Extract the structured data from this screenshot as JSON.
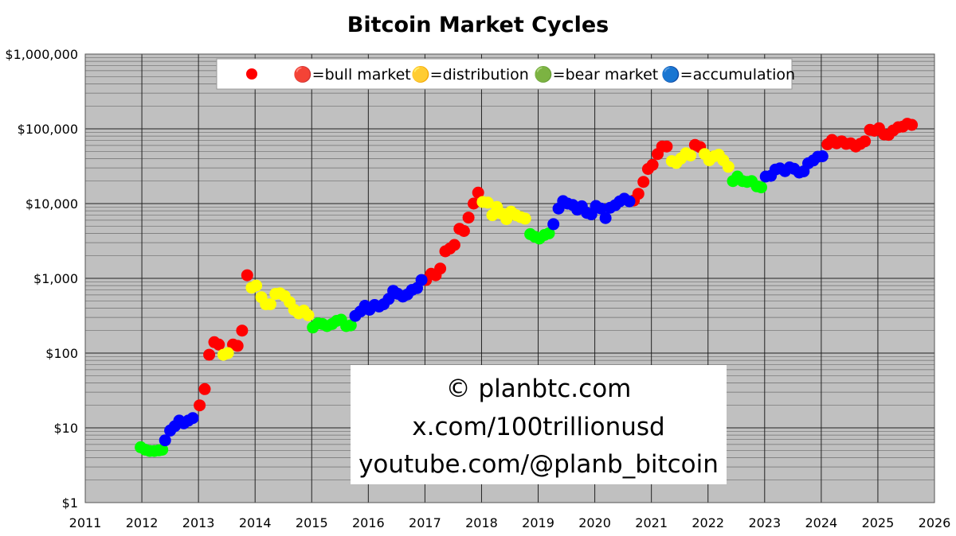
{
  "chart_data": {
    "type": "scatter",
    "title": "Bitcoin Market Cycles",
    "xlabel": "",
    "ylabel": "",
    "x_scale": "linear",
    "y_scale": "log",
    "xlim": [
      2011,
      2026
    ],
    "ylim": [
      1,
      1000000
    ],
    "x_ticks": [
      "2011",
      "2012",
      "2013",
      "2014",
      "2015",
      "2016",
      "2017",
      "2018",
      "2019",
      "2020",
      "2021",
      "2022",
      "2023",
      "2024",
      "2025",
      "2026"
    ],
    "y_ticks": [
      {
        "value": 1,
        "label": "$1"
      },
      {
        "value": 10,
        "label": "$10"
      },
      {
        "value": 100,
        "label": "$100"
      },
      {
        "value": 1000,
        "label": "$1,000"
      },
      {
        "value": 10000,
        "label": "$10,000"
      },
      {
        "value": 100000,
        "label": "$100,000"
      },
      {
        "value": 1000000,
        "label": "$1,000,000"
      }
    ],
    "grid": true,
    "plot_background": "#c0c0c0",
    "legend": {
      "placement": "top",
      "marker_color": "#ff0000",
      "entries": [
        {
          "label": "🔴=bull market",
          "color": "#ff0000"
        },
        {
          "label": "🟡=distribution",
          "color": "#ffff00"
        },
        {
          "label": "🟢=bear market",
          "color": "#00ff00"
        },
        {
          "label": "🔵=accumulation",
          "color": "#0000ff"
        }
      ]
    },
    "series": [
      {
        "phase": "bull market",
        "color": "#ff0000",
        "points": [
          [
            2013.02,
            20
          ],
          [
            2013.11,
            33
          ],
          [
            2013.19,
            95
          ],
          [
            2013.28,
            140
          ],
          [
            2013.36,
            130
          ],
          [
            2013.61,
            130
          ],
          [
            2013.69,
            125
          ],
          [
            2013.77,
            200
          ],
          [
            2013.86,
            1100
          ],
          [
            2017.02,
            950
          ],
          [
            2017.11,
            1150
          ],
          [
            2017.19,
            1100
          ],
          [
            2017.27,
            1350
          ],
          [
            2017.36,
            2300
          ],
          [
            2017.44,
            2500
          ],
          [
            2017.52,
            2800
          ],
          [
            2017.61,
            4600
          ],
          [
            2017.69,
            4300
          ],
          [
            2017.77,
            6500
          ],
          [
            2017.86,
            10000
          ],
          [
            2017.94,
            14000
          ],
          [
            2020.69,
            11000
          ],
          [
            2020.77,
            13500
          ],
          [
            2020.86,
            19500
          ],
          [
            2020.94,
            29000
          ],
          [
            2021.02,
            33000
          ],
          [
            2021.11,
            46000
          ],
          [
            2021.19,
            58000
          ],
          [
            2021.27,
            58000
          ],
          [
            2021.77,
            61000
          ],
          [
            2021.86,
            57000
          ],
          [
            2024.11,
            62000
          ],
          [
            2024.19,
            71000
          ],
          [
            2024.27,
            64000
          ],
          [
            2024.36,
            68000
          ],
          [
            2024.44,
            63000
          ],
          [
            2024.52,
            64000
          ],
          [
            2024.61,
            58000
          ],
          [
            2024.69,
            63000
          ],
          [
            2024.77,
            68000
          ],
          [
            2024.86,
            97000
          ],
          [
            2024.94,
            94000
          ],
          [
            2025.02,
            102000
          ],
          [
            2025.11,
            84000
          ],
          [
            2025.19,
            83000
          ],
          [
            2025.27,
            95000
          ],
          [
            2025.36,
            105000
          ],
          [
            2025.44,
            107000
          ],
          [
            2025.52,
            117000
          ],
          [
            2025.6,
            113000
          ]
        ]
      },
      {
        "phase": "distribution",
        "color": "#ffff00",
        "points": [
          [
            2013.44,
            95
          ],
          [
            2013.52,
            100
          ],
          [
            2013.94,
            750
          ],
          [
            2014.02,
            800
          ],
          [
            2014.11,
            560
          ],
          [
            2014.19,
            450
          ],
          [
            2014.27,
            450
          ],
          [
            2014.36,
            620
          ],
          [
            2014.44,
            630
          ],
          [
            2014.52,
            580
          ],
          [
            2014.61,
            480
          ],
          [
            2014.69,
            380
          ],
          [
            2014.77,
            340
          ],
          [
            2014.86,
            370
          ],
          [
            2014.94,
            320
          ],
          [
            2018.02,
            10500
          ],
          [
            2018.11,
            10300
          ],
          [
            2018.19,
            7000
          ],
          [
            2018.27,
            9000
          ],
          [
            2018.36,
            7300
          ],
          [
            2018.44,
            6200
          ],
          [
            2018.52,
            7800
          ],
          [
            2018.61,
            7000
          ],
          [
            2018.69,
            6600
          ],
          [
            2018.77,
            6300
          ],
          [
            2021.36,
            37000
          ],
          [
            2021.44,
            35000
          ],
          [
            2021.52,
            40000
          ],
          [
            2021.61,
            47000
          ],
          [
            2021.69,
            44000
          ],
          [
            2021.94,
            46000
          ],
          [
            2022.02,
            38000
          ],
          [
            2022.11,
            43000
          ],
          [
            2022.19,
            45000
          ],
          [
            2022.27,
            38000
          ],
          [
            2022.36,
            31000
          ]
        ]
      },
      {
        "phase": "bear market",
        "color": "#00ff00",
        "points": [
          [
            2011.98,
            5.5
          ],
          [
            2012.06,
            5.1
          ],
          [
            2012.14,
            4.9
          ],
          [
            2012.22,
            4.9
          ],
          [
            2012.3,
            5.0
          ],
          [
            2012.36,
            5.1
          ],
          [
            2015.02,
            220
          ],
          [
            2015.11,
            250
          ],
          [
            2015.19,
            245
          ],
          [
            2015.27,
            230
          ],
          [
            2015.36,
            245
          ],
          [
            2015.44,
            270
          ],
          [
            2015.52,
            280
          ],
          [
            2015.61,
            230
          ],
          [
            2015.69,
            235
          ],
          [
            2018.86,
            3900
          ],
          [
            2018.94,
            3600
          ],
          [
            2019.02,
            3400
          ],
          [
            2019.11,
            3800
          ],
          [
            2019.19,
            4000
          ],
          [
            2022.44,
            20000
          ],
          [
            2022.52,
            23000
          ],
          [
            2022.61,
            20000
          ],
          [
            2022.69,
            19500
          ],
          [
            2022.77,
            20000
          ],
          [
            2022.86,
            17000
          ],
          [
            2022.94,
            16500
          ]
        ]
      },
      {
        "phase": "accumulation",
        "color": "#0000ff",
        "points": [
          [
            2012.41,
            6.8
          ],
          [
            2012.5,
            9.2
          ],
          [
            2012.58,
            10.5
          ],
          [
            2012.66,
            12.5
          ],
          [
            2012.74,
            11.5
          ],
          [
            2012.82,
            12.5
          ],
          [
            2012.9,
            13.5
          ],
          [
            2015.77,
            315
          ],
          [
            2015.86,
            360
          ],
          [
            2015.94,
            430
          ],
          [
            2016.02,
            380
          ],
          [
            2016.11,
            440
          ],
          [
            2016.19,
            420
          ],
          [
            2016.27,
            450
          ],
          [
            2016.36,
            530
          ],
          [
            2016.44,
            680
          ],
          [
            2016.52,
            620
          ],
          [
            2016.61,
            570
          ],
          [
            2016.69,
            610
          ],
          [
            2016.77,
            700
          ],
          [
            2016.86,
            740
          ],
          [
            2016.94,
            950
          ],
          [
            2019.27,
            5300
          ],
          [
            2019.36,
            8600
          ],
          [
            2019.44,
            10800
          ],
          [
            2019.52,
            10000
          ],
          [
            2019.61,
            9600
          ],
          [
            2019.69,
            8300
          ],
          [
            2019.77,
            9200
          ],
          [
            2019.86,
            7500
          ],
          [
            2019.94,
            7200
          ],
          [
            2020.02,
            9300
          ],
          [
            2020.11,
            8600
          ],
          [
            2020.19,
            6400
          ],
          [
            2020.27,
            8800
          ],
          [
            2020.36,
            9500
          ],
          [
            2020.44,
            10700
          ],
          [
            2020.52,
            11600
          ],
          [
            2020.61,
            10700
          ],
          [
            2023.02,
            23000
          ],
          [
            2023.11,
            23500
          ],
          [
            2023.19,
            28500
          ],
          [
            2023.27,
            29500
          ],
          [
            2023.36,
            27200
          ],
          [
            2023.44,
            30500
          ],
          [
            2023.52,
            29200
          ],
          [
            2023.61,
            26000
          ],
          [
            2023.69,
            27000
          ],
          [
            2023.77,
            34500
          ],
          [
            2023.86,
            37700
          ],
          [
            2023.94,
            42300
          ],
          [
            2024.02,
            43000
          ]
        ]
      }
    ],
    "annotation_lines": [
      "© planbtc.com",
      "x.com/100trillionusd",
      "youtube.com/@planb_bitcoin"
    ]
  }
}
